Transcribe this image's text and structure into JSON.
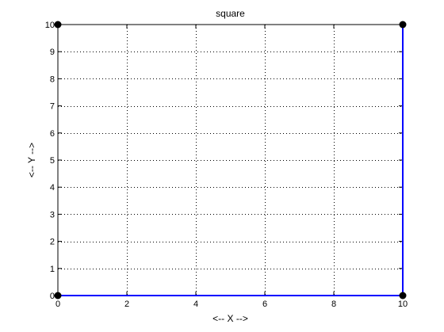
{
  "chart_data": {
    "type": "line",
    "title": "square",
    "xlabel": "<-- X -->",
    "ylabel": "<-- Y -->",
    "xlim": [
      0,
      10
    ],
    "ylim": [
      0,
      10
    ],
    "x_ticks": [
      0,
      2,
      4,
      6,
      8,
      10
    ],
    "y_ticks": [
      0,
      1,
      2,
      3,
      4,
      5,
      6,
      7,
      8,
      9,
      10
    ],
    "grid": true,
    "grid_style": "dotted",
    "series": [
      {
        "color": "#0000ff",
        "x": [
          0,
          10,
          10
        ],
        "y": [
          0,
          0,
          10
        ]
      }
    ],
    "markers": {
      "color": "#000000",
      "x": [
        0,
        10,
        10,
        0
      ],
      "y": [
        0,
        0,
        10,
        10
      ]
    }
  }
}
